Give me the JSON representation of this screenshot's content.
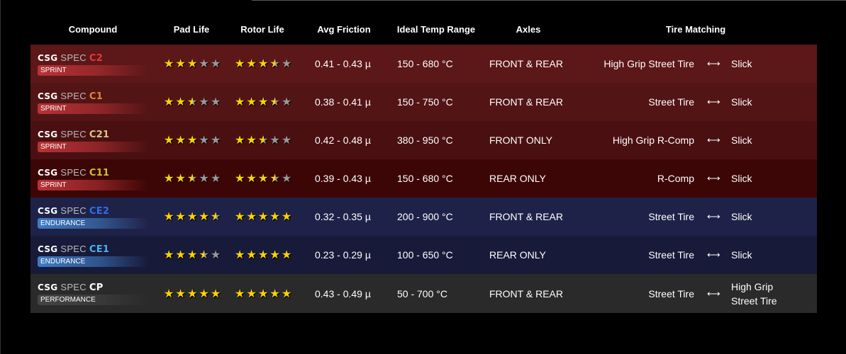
{
  "headers": {
    "compound": "Compound",
    "pad": "Pad Life",
    "rotor": "Rotor Life",
    "friction": "Avg Friction",
    "temp": "Ideal Temp Range",
    "axles": "Axles",
    "tire": "Tire Matching"
  },
  "arrow": "⟷",
  "rows": [
    {
      "brand": "CSG",
      "spec": "SPEC",
      "code": "C2",
      "code_color": "#e8383d",
      "badge": "SPRINT",
      "badge_color": "#b83236",
      "bg": "#5c1718",
      "pad": 3,
      "rotor": 3.5,
      "friction": "0.41 - 0.43 µ",
      "temp": "150 - 680 °C",
      "axles": "FRONT & REAR",
      "tire_from": "High Grip Street Tire",
      "tire_to": "Slick"
    },
    {
      "brand": "CSG",
      "spec": "SPEC",
      "code": "C1",
      "code_color": "#de8a35",
      "badge": "SPRINT",
      "badge_color": "#b83236",
      "bg": "#531415",
      "pad": 2.5,
      "rotor": 3.5,
      "friction": "0.38 - 0.41 µ",
      "temp": "150 - 750 °C",
      "axles": "FRONT & REAR",
      "tire_from": "Street Tire",
      "tire_to": "Slick"
    },
    {
      "brand": "CSG",
      "spec": "SPEC",
      "code": "C21",
      "code_color": "#d6c98c",
      "badge": "SPRINT",
      "badge_color": "#b83236",
      "bg": "#4a1011",
      "pad": 3,
      "rotor": 2.5,
      "friction": "0.42 - 0.48 µ",
      "temp": "380 - 950 °C",
      "axles": "FRONT ONLY",
      "tire_from": "High Grip R-Comp",
      "tire_to": "Slick"
    },
    {
      "brand": "CSG",
      "spec": "SPEC",
      "code": "C11",
      "code_color": "#c9c431",
      "badge": "SPRINT",
      "badge_color": "#b83236",
      "bg": "#3d0606",
      "pad": 2.5,
      "rotor": 3.5,
      "friction": "0.39 - 0.43 µ",
      "temp": "150 - 680 °C",
      "axles": "REAR ONLY",
      "tire_from": "R-Comp",
      "tire_to": "Slick"
    },
    {
      "brand": "CSG",
      "spec": "SPEC",
      "code": "CE2",
      "code_color": "#2f6fe8",
      "badge": "ENDURANCE",
      "badge_color": "#3f7cc4",
      "bg": "#1f2248",
      "pad": 4.5,
      "rotor": 5,
      "friction": "0.32 - 0.35 µ",
      "temp": "200 - 900 °C",
      "axles": "FRONT & REAR",
      "tire_from": "Street Tire",
      "tire_to": "Slick"
    },
    {
      "brand": "CSG",
      "spec": "SPEC",
      "code": "CE1",
      "code_color": "#4cb2ee",
      "badge": "ENDURANCE",
      "badge_color": "#3f7cc4",
      "bg": "#181a3a",
      "pad": 3.5,
      "rotor": 5,
      "friction": "0.23 - 0.29 µ",
      "temp": "100 - 650 °C",
      "axles": "REAR ONLY",
      "tire_from": "Street Tire",
      "tire_to": "Slick"
    },
    {
      "brand": "CSG",
      "spec": "SPEC",
      "code": "CP",
      "code_color": "#ffffff",
      "badge": "PERFORMANCE",
      "badge_color": "#444444",
      "bg": "#2a2a2a",
      "pad": 5,
      "rotor": 5,
      "friction": "0.43 - 0.49 µ",
      "temp": "50 - 700 °C",
      "axles": "FRONT & REAR",
      "tire_from": "Street Tire",
      "tire_to": "High Grip Street Tire"
    }
  ]
}
